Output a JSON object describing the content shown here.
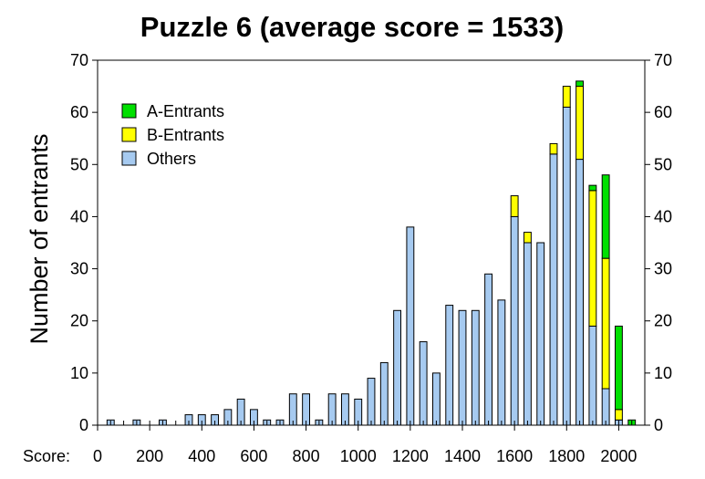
{
  "chart_data": {
    "type": "bar",
    "stacked": true,
    "title": "Puzzle 6 (average score = 1533)",
    "ylabel": "Number of entrants",
    "xlabel_prefix": "Score:",
    "xlim": [
      0,
      2100
    ],
    "ylim": [
      0,
      70
    ],
    "bin_width": 50,
    "x_ticks": [
      "0",
      "200",
      "400",
      "600",
      "800",
      "1000",
      "1200",
      "1400",
      "1600",
      "1800",
      "2000"
    ],
    "x_tick_values": [
      0,
      200,
      400,
      600,
      800,
      1000,
      1200,
      1400,
      1600,
      1800,
      2000
    ],
    "y_ticks": [
      "0",
      "10",
      "20",
      "30",
      "40",
      "50",
      "60",
      "70"
    ],
    "y_tick_values": [
      0,
      10,
      20,
      30,
      40,
      50,
      60,
      70
    ],
    "legend_position": "top-left",
    "x": [
      50,
      100,
      150,
      200,
      250,
      300,
      350,
      400,
      450,
      500,
      550,
      600,
      650,
      700,
      750,
      800,
      850,
      900,
      950,
      1000,
      1050,
      1100,
      1150,
      1200,
      1250,
      1300,
      1350,
      1400,
      1450,
      1500,
      1550,
      1600,
      1650,
      1700,
      1750,
      1800,
      1850,
      1900,
      1950,
      2000,
      2050,
      2100
    ],
    "series": [
      {
        "name": "Others",
        "color": "#a6caf0",
        "values": [
          1,
          0,
          1,
          0,
          1,
          0,
          2,
          2,
          2,
          3,
          5,
          3,
          1,
          1,
          6,
          6,
          1,
          6,
          6,
          5,
          9,
          12,
          22,
          38,
          16,
          10,
          23,
          22,
          22,
          29,
          24,
          40,
          35,
          35,
          52,
          61,
          51,
          19,
          7,
          1,
          0,
          0
        ]
      },
      {
        "name": "B-Entrants",
        "color": "#ffff00",
        "values": [
          0,
          0,
          0,
          0,
          0,
          0,
          0,
          0,
          0,
          0,
          0,
          0,
          0,
          0,
          0,
          0,
          0,
          0,
          0,
          0,
          0,
          0,
          0,
          0,
          0,
          0,
          0,
          0,
          0,
          0,
          0,
          4,
          2,
          0,
          2,
          4,
          14,
          26,
          25,
          2,
          0,
          0
        ]
      },
      {
        "name": "A-Entrants",
        "color": "#00e000",
        "values": [
          0,
          0,
          0,
          0,
          0,
          0,
          0,
          0,
          0,
          0,
          0,
          0,
          0,
          0,
          0,
          0,
          0,
          0,
          0,
          0,
          0,
          0,
          0,
          0,
          0,
          0,
          0,
          0,
          0,
          0,
          0,
          0,
          0,
          0,
          0,
          0,
          1,
          1,
          16,
          16,
          1,
          0
        ]
      }
    ],
    "legend_order": [
      "A-Entrants",
      "B-Entrants",
      "Others"
    ]
  }
}
